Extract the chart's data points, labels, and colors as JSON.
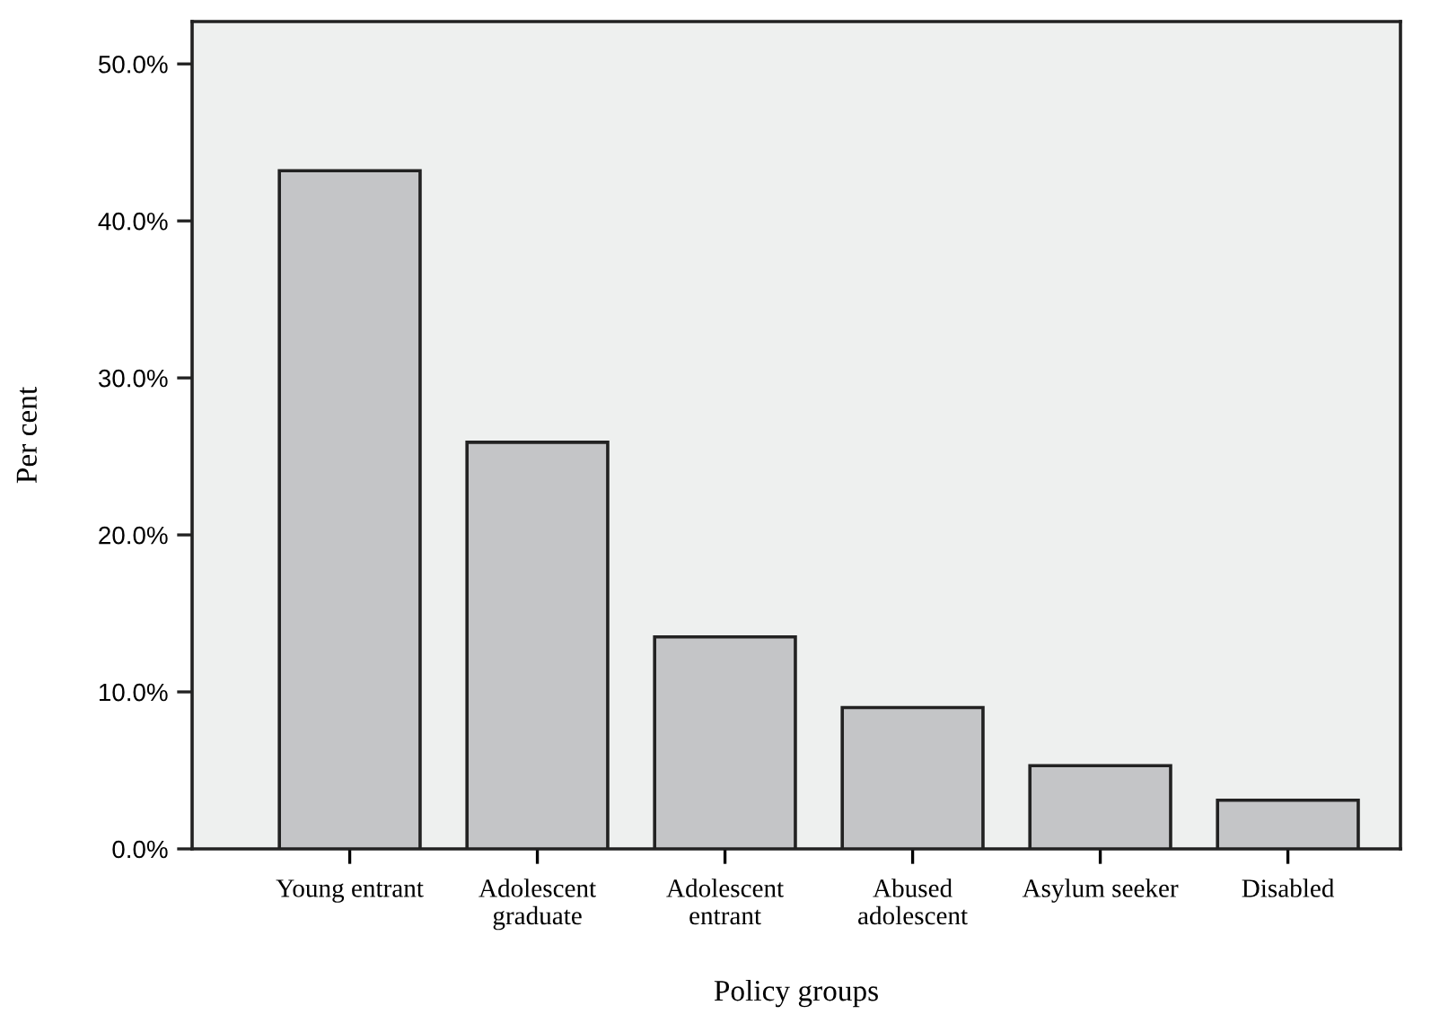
{
  "chart_data": {
    "type": "bar",
    "xlabel": "Policy groups",
    "ylabel": "Per cent",
    "categories": [
      "Young entrant",
      "Adolescent\ngraduate",
      "Adolescent\nentrant",
      "Abused\nadolescent",
      "Asylum seeker",
      "Disabled"
    ],
    "values": [
      43.2,
      25.9,
      13.5,
      9.0,
      5.3,
      3.1
    ],
    "color": "#c4c5c7",
    "ylim": [
      0,
      52.7
    ],
    "yticks": [
      {
        "value": 0,
        "label": "0.0%"
      },
      {
        "value": 10,
        "label": "10.0%"
      },
      {
        "value": 20,
        "label": "20.0%"
      },
      {
        "value": 30,
        "label": "30.0%"
      },
      {
        "value": 40,
        "label": "40.0%"
      },
      {
        "value": 50,
        "label": "50.0%"
      }
    ],
    "grid": false,
    "legend": false
  }
}
